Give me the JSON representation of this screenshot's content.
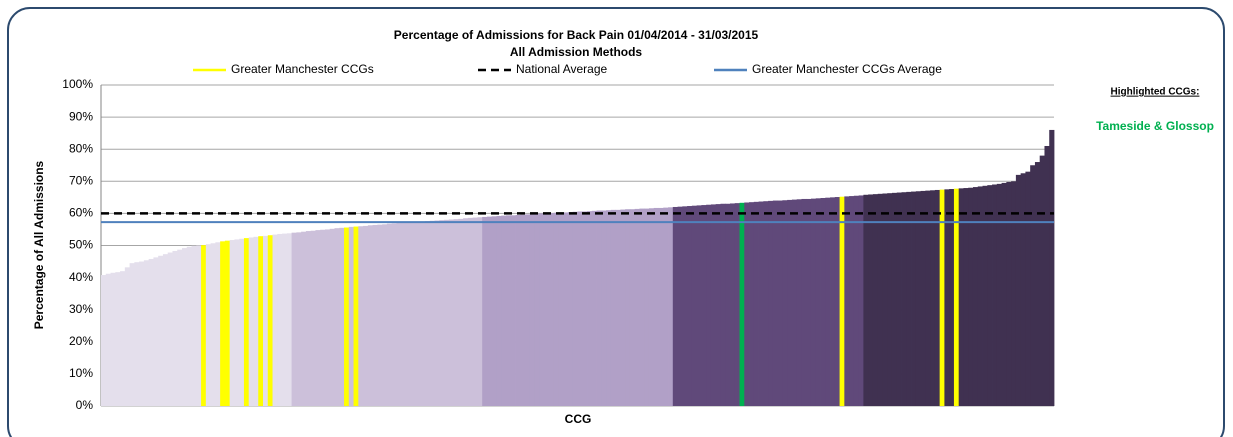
{
  "chart_data": {
    "type": "bar",
    "title": "Percentage of Admissions for Back Pain 01/04/2014 - 31/03/2015",
    "subtitle": "All Admission Methods",
    "x_label": "CCG",
    "y_label": "Percentage of All Admissions",
    "ylim": [
      0,
      100
    ],
    "yticks": [
      {
        "value": 0,
        "label": "0%"
      },
      {
        "value": 10,
        "label": "10%"
      },
      {
        "value": 20,
        "label": "20%"
      },
      {
        "value": 30,
        "label": "30%"
      },
      {
        "value": 40,
        "label": "40%"
      },
      {
        "value": 50,
        "label": "50%"
      },
      {
        "value": 60,
        "label": "60%"
      },
      {
        "value": 70,
        "label": "70%"
      },
      {
        "value": 80,
        "label": "80%"
      },
      {
        "value": 90,
        "label": "90%"
      },
      {
        "value": 100,
        "label": "100%"
      }
    ],
    "grid": true,
    "group_colors": [
      "#e4dfec",
      "#ccc0da",
      "#b1a0c7",
      "#60497a",
      "#403151"
    ],
    "values": [
      40.8,
      41.2,
      41.5,
      41.7,
      42.0,
      43.2,
      44.5,
      44.8,
      45.0,
      45.4,
      45.8,
      46.3,
      46.8,
      47.3,
      47.8,
      48.3,
      48.7,
      49.2,
      49.6,
      49.9,
      50.0,
      50.1,
      50.4,
      50.7,
      51.0,
      51.3,
      51.5,
      51.7,
      51.9,
      52.1,
      52.3,
      52.5,
      52.7,
      52.9,
      53.0,
      53.2,
      53.4,
      53.6,
      53.7,
      53.8,
      54.0,
      54.1,
      54.3,
      54.5,
      54.6,
      54.8,
      54.9,
      55.0,
      55.2,
      55.4,
      55.5,
      55.6,
      55.8,
      55.9,
      56.0,
      56.1,
      56.3,
      56.4,
      56.5,
      56.6,
      56.8,
      56.9,
      57.0,
      57.1,
      57.2,
      57.3,
      57.4,
      57.5,
      57.6,
      57.7,
      57.8,
      57.9,
      58.0,
      58.1,
      58.2,
      58.3,
      58.5,
      58.6,
      58.7,
      58.8,
      58.9,
      59.0,
      59.1,
      59.2,
      59.3,
      59.4,
      59.4,
      59.5,
      59.6,
      59.7,
      59.8,
      59.9,
      60.0,
      60.0,
      60.1,
      60.2,
      60.3,
      60.3,
      60.4,
      60.5,
      60.6,
      60.6,
      60.7,
      60.8,
      60.9,
      60.9,
      61.0,
      61.1,
      61.1,
      61.2,
      61.3,
      61.3,
      61.4,
      61.5,
      61.5,
      61.6,
      61.7,
      61.7,
      61.8,
      61.9,
      62.0,
      62.1,
      62.2,
      62.3,
      62.4,
      62.5,
      62.6,
      62.7,
      62.8,
      62.9,
      63.0,
      63.0,
      63.1,
      63.2,
      63.3,
      63.4,
      63.5,
      63.6,
      63.7,
      63.8,
      63.9,
      64.0,
      64.0,
      64.1,
      64.2,
      64.3,
      64.4,
      64.5,
      64.5,
      64.6,
      64.7,
      64.8,
      64.9,
      65.0,
      65.1,
      65.2,
      65.3,
      65.4,
      65.5,
      65.6,
      65.8,
      65.9,
      66.0,
      66.1,
      66.2,
      66.3,
      66.4,
      66.5,
      66.6,
      66.7,
      66.8,
      66.9,
      67.0,
      67.1,
      67.2,
      67.3,
      67.4,
      67.5,
      67.6,
      67.7,
      67.8,
      67.9,
      68.0,
      68.2,
      68.4,
      68.6,
      68.8,
      69.0,
      69.2,
      69.5,
      69.8,
      70.0,
      72.0,
      72.5,
      73.0,
      75.0,
      76.0,
      78.0,
      81.0,
      86.0
    ],
    "highlights": [
      {
        "name": "Greater Manchester CCGs",
        "color": "#ffff00",
        "indices": [
          21,
          25,
          26,
          30,
          33,
          35,
          51,
          53,
          155,
          176,
          179
        ]
      },
      {
        "name": "Tameside & Glossop",
        "color": "#00b050",
        "indices": [
          134
        ]
      }
    ],
    "reference_lines": [
      {
        "name": "National Average",
        "value": 60.0,
        "color": "#000000",
        "dashed": true
      },
      {
        "name": "Greater Manchester CCGs Average",
        "value": 57.3,
        "color": "#4f81bd",
        "dashed": false
      }
    ],
    "highlight_title": "Highlighted CCGs:"
  }
}
